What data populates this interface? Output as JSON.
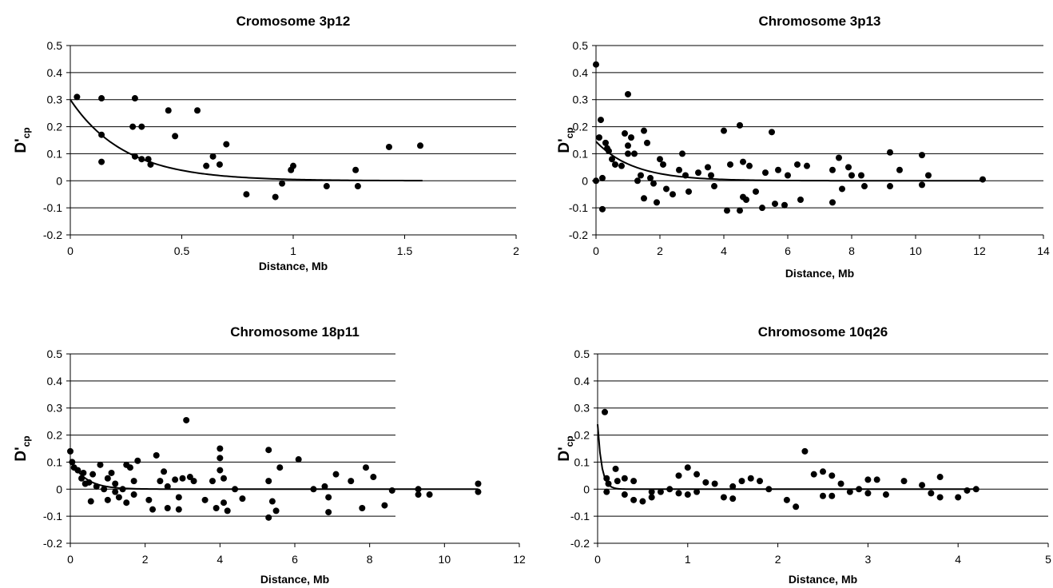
{
  "chart_data": [
    {
      "type": "scatter",
      "title": "Cromosome 3p12",
      "xlabel": "Distance, Mb",
      "ylabel": "D'",
      "ylabel_sub": "cp",
      "xlim": [
        0,
        2
      ],
      "xticks": [
        0,
        0.5,
        1,
        1.5,
        2
      ],
      "xtick_labels": [
        "0",
        "0.5",
        "1",
        "1.5",
        "2"
      ],
      "ylim": [
        -0.2,
        0.5
      ],
      "yticks": [
        -0.2,
        -0.1,
        0,
        0.1,
        0.2,
        0.3,
        0.4,
        0.5
      ],
      "ytick_labels": [
        "-0.2",
        "-0.1",
        "0",
        "0.1",
        "0.2",
        "0.3",
        "0.4",
        "0.5"
      ],
      "grid": true,
      "fit_x_max": 1.58,
      "points": [
        {
          "x": 0.03,
          "y": 0.31
        },
        {
          "x": 0.14,
          "y": 0.305
        },
        {
          "x": 0.14,
          "y": 0.17
        },
        {
          "x": 0.14,
          "y": 0.07
        },
        {
          "x": 0.29,
          "y": 0.305
        },
        {
          "x": 0.28,
          "y": 0.2
        },
        {
          "x": 0.32,
          "y": 0.2
        },
        {
          "x": 0.29,
          "y": 0.09
        },
        {
          "x": 0.32,
          "y": 0.08
        },
        {
          "x": 0.35,
          "y": 0.08
        },
        {
          "x": 0.36,
          "y": 0.06
        },
        {
          "x": 0.44,
          "y": 0.26
        },
        {
          "x": 0.47,
          "y": 0.165
        },
        {
          "x": 0.57,
          "y": 0.26
        },
        {
          "x": 0.61,
          "y": 0.055
        },
        {
          "x": 0.64,
          "y": 0.09
        },
        {
          "x": 0.67,
          "y": 0.06
        },
        {
          "x": 0.7,
          "y": 0.135
        },
        {
          "x": 0.79,
          "y": -0.05
        },
        {
          "x": 0.92,
          "y": -0.06
        },
        {
          "x": 0.95,
          "y": -0.01
        },
        {
          "x": 0.99,
          "y": 0.04
        },
        {
          "x": 1.0,
          "y": 0.055
        },
        {
          "x": 1.15,
          "y": -0.02
        },
        {
          "x": 1.28,
          "y": 0.04
        },
        {
          "x": 1.29,
          "y": -0.02
        },
        {
          "x": 1.43,
          "y": 0.125
        },
        {
          "x": 1.57,
          "y": 0.13
        }
      ],
      "fit": {
        "a": 0.3,
        "b": 4.1
      }
    },
    {
      "type": "scatter",
      "title": "Chromosome 3p13",
      "xlabel": "Distance, Mb",
      "ylabel": "D'",
      "ylabel_sub": "cp",
      "xlim": [
        0,
        14
      ],
      "xticks": [
        0,
        2,
        4,
        6,
        8,
        10,
        12,
        14
      ],
      "xtick_labels": [
        "0",
        "2",
        "4",
        "6",
        "8",
        "10",
        "12",
        "14"
      ],
      "ylim": [
        -0.2,
        0.5
      ],
      "yticks": [
        -0.2,
        -0.1,
        0,
        0.1,
        0.2,
        0.3,
        0.4,
        0.5
      ],
      "ytick_labels": [
        "-0.2",
        "-0.1",
        "0",
        "0.1",
        "0.2",
        "0.3",
        "0.4",
        "0.5"
      ],
      "grid": true,
      "fit_x_max": 12.1,
      "points": [
        {
          "x": 0.0,
          "y": 0.43
        },
        {
          "x": 0.0,
          "y": 0.0
        },
        {
          "x": 0.1,
          "y": 0.16
        },
        {
          "x": 0.15,
          "y": 0.225
        },
        {
          "x": 0.2,
          "y": 0.01
        },
        {
          "x": 0.2,
          "y": -0.105
        },
        {
          "x": 0.3,
          "y": 0.14
        },
        {
          "x": 0.35,
          "y": 0.12
        },
        {
          "x": 0.4,
          "y": 0.11
        },
        {
          "x": 0.5,
          "y": 0.08
        },
        {
          "x": 0.6,
          "y": 0.06
        },
        {
          "x": 0.8,
          "y": 0.055
        },
        {
          "x": 0.9,
          "y": 0.175
        },
        {
          "x": 1.0,
          "y": 0.32
        },
        {
          "x": 1.0,
          "y": 0.13
        },
        {
          "x": 1.0,
          "y": 0.1
        },
        {
          "x": 1.1,
          "y": 0.16
        },
        {
          "x": 1.2,
          "y": 0.1
        },
        {
          "x": 1.3,
          "y": 0.0
        },
        {
          "x": 1.4,
          "y": 0.02
        },
        {
          "x": 1.5,
          "y": 0.185
        },
        {
          "x": 1.6,
          "y": 0.14
        },
        {
          "x": 1.5,
          "y": -0.065
        },
        {
          "x": 1.7,
          "y": 0.01
        },
        {
          "x": 1.8,
          "y": -0.01
        },
        {
          "x": 1.9,
          "y": -0.08
        },
        {
          "x": 2.0,
          "y": 0.08
        },
        {
          "x": 2.1,
          "y": 0.06
        },
        {
          "x": 2.2,
          "y": -0.03
        },
        {
          "x": 2.4,
          "y": -0.05
        },
        {
          "x": 2.6,
          "y": 0.04
        },
        {
          "x": 2.7,
          "y": 0.1
        },
        {
          "x": 2.8,
          "y": 0.02
        },
        {
          "x": 2.9,
          "y": -0.04
        },
        {
          "x": 3.2,
          "y": 0.03
        },
        {
          "x": 3.5,
          "y": 0.05
        },
        {
          "x": 3.6,
          "y": 0.02
        },
        {
          "x": 3.7,
          "y": -0.02
        },
        {
          "x": 4.0,
          "y": 0.185
        },
        {
          "x": 4.1,
          "y": -0.11
        },
        {
          "x": 4.2,
          "y": 0.06
        },
        {
          "x": 4.5,
          "y": 0.205
        },
        {
          "x": 4.5,
          "y": -0.11
        },
        {
          "x": 4.6,
          "y": 0.07
        },
        {
          "x": 4.6,
          "y": -0.06
        },
        {
          "x": 4.7,
          "y": -0.07
        },
        {
          "x": 4.8,
          "y": 0.055
        },
        {
          "x": 5.0,
          "y": -0.04
        },
        {
          "x": 5.2,
          "y": -0.1
        },
        {
          "x": 5.3,
          "y": 0.03
        },
        {
          "x": 5.5,
          "y": 0.18
        },
        {
          "x": 5.6,
          "y": -0.085
        },
        {
          "x": 5.7,
          "y": 0.04
        },
        {
          "x": 5.9,
          "y": -0.09
        },
        {
          "x": 6.0,
          "y": 0.02
        },
        {
          "x": 6.3,
          "y": 0.06
        },
        {
          "x": 6.4,
          "y": -0.07
        },
        {
          "x": 6.6,
          "y": 0.055
        },
        {
          "x": 7.4,
          "y": 0.04
        },
        {
          "x": 7.4,
          "y": -0.08
        },
        {
          "x": 7.6,
          "y": 0.085
        },
        {
          "x": 7.7,
          "y": -0.03
        },
        {
          "x": 7.9,
          "y": 0.05
        },
        {
          "x": 8.0,
          "y": 0.02
        },
        {
          "x": 8.3,
          "y": 0.02
        },
        {
          "x": 8.4,
          "y": -0.02
        },
        {
          "x": 9.2,
          "y": 0.105
        },
        {
          "x": 9.2,
          "y": -0.02
        },
        {
          "x": 9.5,
          "y": 0.04
        },
        {
          "x": 10.2,
          "y": 0.095
        },
        {
          "x": 10.2,
          "y": -0.015
        },
        {
          "x": 10.4,
          "y": 0.02
        },
        {
          "x": 12.1,
          "y": 0.005
        }
      ],
      "fit": {
        "a": 0.145,
        "b": 0.85
      }
    },
    {
      "type": "scatter",
      "title": "Chromosome 18p11",
      "xlabel": "Distance, Mb",
      "ylabel": "D'",
      "ylabel_sub": "cp",
      "xlim": [
        0,
        12
      ],
      "xticks": [
        0,
        2,
        4,
        6,
        8,
        10,
        12
      ],
      "xtick_labels": [
        "0",
        "2",
        "4",
        "6",
        "8",
        "10",
        "12"
      ],
      "ylim": [
        -0.2,
        0.5
      ],
      "yticks": [
        -0.2,
        -0.1,
        0,
        0.1,
        0.2,
        0.3,
        0.4,
        0.5
      ],
      "ytick_labels": [
        "-0.2",
        "-0.1",
        "0",
        "0.1",
        "0.2",
        "0.3",
        "0.4",
        "0.5"
      ],
      "grid": true,
      "fit_x_max": 10.9,
      "points": [
        {
          "x": 0.0,
          "y": 0.14
        },
        {
          "x": 0.05,
          "y": 0.1
        },
        {
          "x": 0.1,
          "y": 0.08
        },
        {
          "x": 0.2,
          "y": 0.07
        },
        {
          "x": 0.3,
          "y": 0.04
        },
        {
          "x": 0.35,
          "y": 0.06
        },
        {
          "x": 0.4,
          "y": 0.02
        },
        {
          "x": 0.5,
          "y": 0.025
        },
        {
          "x": 0.55,
          "y": -0.045
        },
        {
          "x": 0.6,
          "y": 0.055
        },
        {
          "x": 0.7,
          "y": 0.01
        },
        {
          "x": 0.8,
          "y": 0.09
        },
        {
          "x": 0.9,
          "y": 0.0
        },
        {
          "x": 1.0,
          "y": 0.04
        },
        {
          "x": 1.0,
          "y": -0.04
        },
        {
          "x": 1.1,
          "y": 0.06
        },
        {
          "x": 1.2,
          "y": 0.02
        },
        {
          "x": 1.2,
          "y": -0.01
        },
        {
          "x": 1.3,
          "y": -0.03
        },
        {
          "x": 1.4,
          "y": 0.0
        },
        {
          "x": 1.5,
          "y": -0.05
        },
        {
          "x": 1.5,
          "y": 0.09
        },
        {
          "x": 1.6,
          "y": 0.08
        },
        {
          "x": 1.7,
          "y": 0.03
        },
        {
          "x": 1.7,
          "y": -0.02
        },
        {
          "x": 1.8,
          "y": 0.105
        },
        {
          "x": 2.1,
          "y": -0.04
        },
        {
          "x": 2.2,
          "y": -0.075
        },
        {
          "x": 2.3,
          "y": 0.125
        },
        {
          "x": 2.4,
          "y": 0.03
        },
        {
          "x": 2.5,
          "y": 0.065
        },
        {
          "x": 2.6,
          "y": 0.01
        },
        {
          "x": 2.6,
          "y": -0.07
        },
        {
          "x": 2.8,
          "y": 0.035
        },
        {
          "x": 2.9,
          "y": -0.03
        },
        {
          "x": 2.9,
          "y": -0.075
        },
        {
          "x": 3.0,
          "y": 0.04
        },
        {
          "x": 3.1,
          "y": 0.255
        },
        {
          "x": 3.2,
          "y": 0.045
        },
        {
          "x": 3.3,
          "y": 0.03
        },
        {
          "x": 3.6,
          "y": -0.04
        },
        {
          "x": 3.8,
          "y": 0.03
        },
        {
          "x": 3.9,
          "y": -0.07
        },
        {
          "x": 4.0,
          "y": 0.15
        },
        {
          "x": 4.0,
          "y": 0.115
        },
        {
          "x": 4.0,
          "y": 0.07
        },
        {
          "x": 4.1,
          "y": 0.04
        },
        {
          "x": 4.1,
          "y": -0.05
        },
        {
          "x": 4.2,
          "y": -0.08
        },
        {
          "x": 4.4,
          "y": 0.0
        },
        {
          "x": 4.6,
          "y": -0.035
        },
        {
          "x": 5.3,
          "y": 0.145
        },
        {
          "x": 5.3,
          "y": 0.03
        },
        {
          "x": 5.3,
          "y": -0.105
        },
        {
          "x": 5.4,
          "y": -0.045
        },
        {
          "x": 5.5,
          "y": -0.08
        },
        {
          "x": 5.6,
          "y": 0.08
        },
        {
          "x": 6.1,
          "y": 0.11
        },
        {
          "x": 6.5,
          "y": 0.0
        },
        {
          "x": 6.8,
          "y": 0.01
        },
        {
          "x": 6.9,
          "y": -0.03
        },
        {
          "x": 6.9,
          "y": -0.085
        },
        {
          "x": 7.1,
          "y": 0.055
        },
        {
          "x": 7.5,
          "y": 0.03
        },
        {
          "x": 7.8,
          "y": -0.07
        },
        {
          "x": 7.9,
          "y": 0.08
        },
        {
          "x": 8.1,
          "y": 0.045
        },
        {
          "x": 8.4,
          "y": -0.06
        },
        {
          "x": 8.6,
          "y": -0.005
        },
        {
          "x": 9.3,
          "y": 0.0
        },
        {
          "x": 9.3,
          "y": -0.02
        },
        {
          "x": 9.6,
          "y": -0.02
        },
        {
          "x": 10.9,
          "y": 0.02
        },
        {
          "x": 10.9,
          "y": -0.01
        }
      ],
      "fit": {
        "a": 0.11,
        "b": 2.5
      }
    },
    {
      "type": "scatter",
      "title": "Chromosome 10q26",
      "xlabel": "Distance, Mb",
      "ylabel": "D'",
      "ylabel_sub": "cp",
      "xlim": [
        0,
        5
      ],
      "xticks": [
        0,
        1,
        2,
        3,
        4,
        5
      ],
      "xtick_labels": [
        "0",
        "1",
        "2",
        "3",
        "4",
        "5"
      ],
      "ylim": [
        -0.2,
        0.5
      ],
      "yticks": [
        -0.2,
        -0.1,
        0,
        0.1,
        0.2,
        0.3,
        0.4,
        0.5
      ],
      "ytick_labels": [
        "-0.2",
        "-0.1",
        "0",
        "0.1",
        "0.2",
        "0.3",
        "0.4",
        "0.5"
      ],
      "grid": true,
      "fit_x_max": 4.2,
      "points": [
        {
          "x": 0.08,
          "y": 0.285
        },
        {
          "x": 0.1,
          "y": 0.04
        },
        {
          "x": 0.1,
          "y": -0.01
        },
        {
          "x": 0.12,
          "y": 0.02
        },
        {
          "x": 0.2,
          "y": 0.075
        },
        {
          "x": 0.22,
          "y": 0.03
        },
        {
          "x": 0.3,
          "y": 0.04
        },
        {
          "x": 0.3,
          "y": -0.02
        },
        {
          "x": 0.4,
          "y": 0.03
        },
        {
          "x": 0.4,
          "y": -0.04
        },
        {
          "x": 0.5,
          "y": -0.045
        },
        {
          "x": 0.6,
          "y": -0.01
        },
        {
          "x": 0.6,
          "y": -0.03
        },
        {
          "x": 0.7,
          "y": -0.01
        },
        {
          "x": 0.8,
          "y": 0.0
        },
        {
          "x": 0.9,
          "y": 0.05
        },
        {
          "x": 0.9,
          "y": -0.015
        },
        {
          "x": 1.0,
          "y": 0.08
        },
        {
          "x": 1.0,
          "y": -0.02
        },
        {
          "x": 1.1,
          "y": 0.055
        },
        {
          "x": 1.1,
          "y": -0.01
        },
        {
          "x": 1.2,
          "y": 0.025
        },
        {
          "x": 1.3,
          "y": 0.02
        },
        {
          "x": 1.4,
          "y": -0.03
        },
        {
          "x": 1.5,
          "y": 0.01
        },
        {
          "x": 1.5,
          "y": -0.035
        },
        {
          "x": 1.6,
          "y": 0.03
        },
        {
          "x": 1.7,
          "y": 0.04
        },
        {
          "x": 1.8,
          "y": 0.03
        },
        {
          "x": 1.9,
          "y": 0.0
        },
        {
          "x": 2.1,
          "y": -0.04
        },
        {
          "x": 2.2,
          "y": -0.065
        },
        {
          "x": 2.3,
          "y": 0.14
        },
        {
          "x": 2.4,
          "y": 0.055
        },
        {
          "x": 2.5,
          "y": 0.065
        },
        {
          "x": 2.5,
          "y": -0.025
        },
        {
          "x": 2.6,
          "y": 0.05
        },
        {
          "x": 2.6,
          "y": -0.025
        },
        {
          "x": 2.7,
          "y": 0.02
        },
        {
          "x": 2.8,
          "y": -0.01
        },
        {
          "x": 2.9,
          "y": 0.0
        },
        {
          "x": 3.0,
          "y": 0.035
        },
        {
          "x": 3.0,
          "y": -0.015
        },
        {
          "x": 3.1,
          "y": 0.035
        },
        {
          "x": 3.2,
          "y": -0.02
        },
        {
          "x": 3.4,
          "y": 0.03
        },
        {
          "x": 3.6,
          "y": 0.015
        },
        {
          "x": 3.7,
          "y": -0.015
        },
        {
          "x": 3.8,
          "y": 0.045
        },
        {
          "x": 3.8,
          "y": -0.03
        },
        {
          "x": 4.0,
          "y": -0.03
        },
        {
          "x": 4.1,
          "y": -0.005
        },
        {
          "x": 4.2,
          "y": 0.0
        }
      ],
      "fit": {
        "a": 0.24,
        "b": 22
      }
    }
  ]
}
